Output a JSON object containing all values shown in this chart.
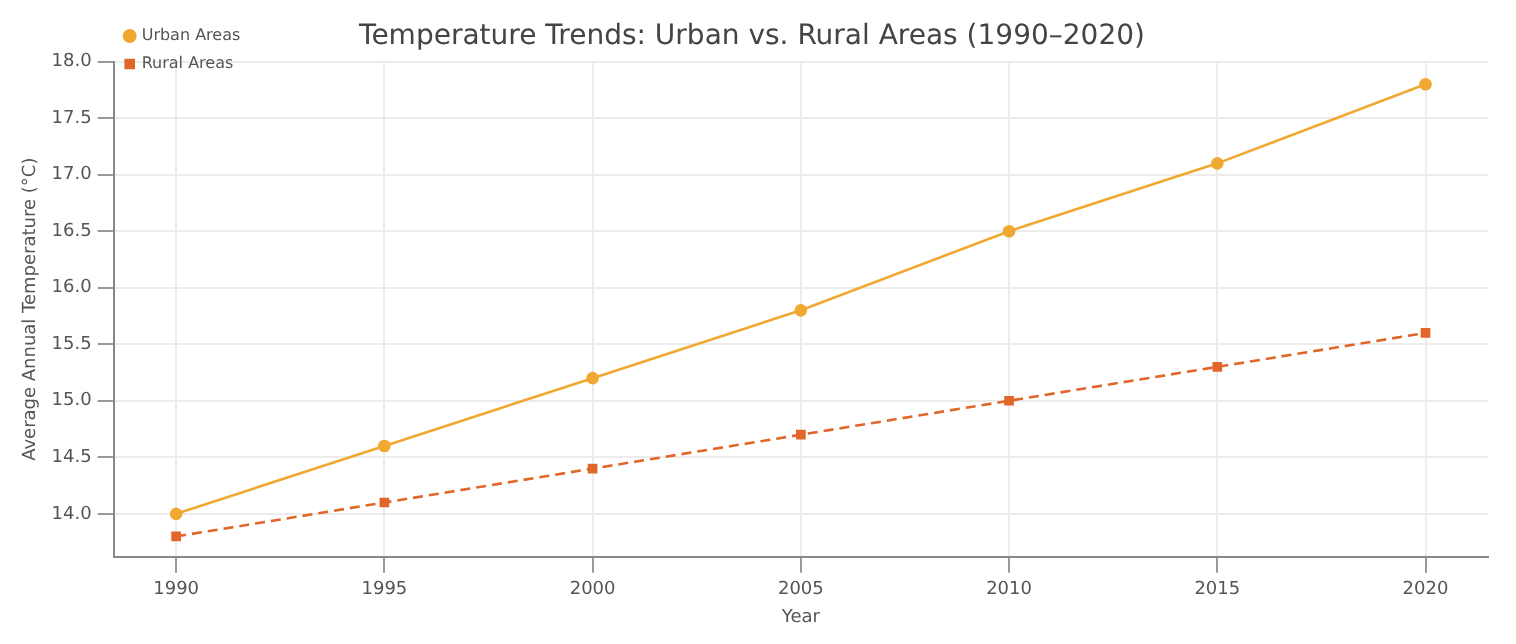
{
  "chart_data": {
    "type": "line",
    "title": "Temperature Trends: Urban vs. Rural Areas (1990–2020)",
    "xlabel": "Year",
    "ylabel": "Average Annual Temperature (°C)",
    "x": [
      1990,
      1995,
      2000,
      2005,
      2010,
      2015,
      2020
    ],
    "series": [
      {
        "name": "Urban Areas",
        "color": "#f0a830",
        "marker": "circle",
        "line_style": "solid",
        "values": [
          14.0,
          14.6,
          15.2,
          15.8,
          16.5,
          17.1,
          17.8
        ]
      },
      {
        "name": "Rural Areas",
        "color": "#e0662a",
        "marker": "square",
        "line_style": "dashed",
        "values": [
          13.8,
          14.1,
          14.4,
          14.7,
          15.0,
          15.3,
          15.6
        ]
      }
    ],
    "xlim": [
      1988.5,
      2021.5
    ],
    "xticks": [
      1990,
      1995,
      2000,
      2005,
      2010,
      2015,
      2020
    ],
    "ylim": [
      13.62,
      18.0
    ],
    "yticks": [
      {
        "value": 14,
        "label": "14.0"
      },
      14.5,
      {
        "value": 15,
        "label": "15.0"
      },
      15.5,
      {
        "value": 16,
        "label": "16.0"
      },
      16.5,
      {
        "value": 17,
        "label": "17.0"
      },
      17.5,
      {
        "value": 18,
        "label": "18.0"
      }
    ],
    "grid": true,
    "legend": "top left"
  }
}
